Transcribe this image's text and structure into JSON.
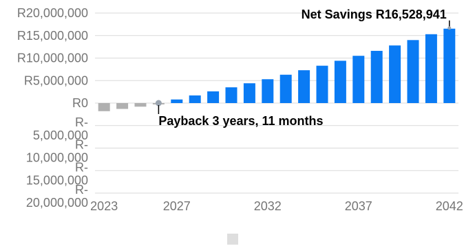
{
  "chart_data": {
    "type": "bar",
    "x": [
      2023,
      2024,
      2025,
      2026,
      2027,
      2028,
      2029,
      2030,
      2031,
      2032,
      2033,
      2034,
      2035,
      2036,
      2037,
      2038,
      2039,
      2040,
      2041,
      2042
    ],
    "values": [
      -1800000,
      -1300000,
      -800000,
      -300000,
      800000,
      1700000,
      2600000,
      3500000,
      4400000,
      5300000,
      6300000,
      7300000,
      8300000,
      9400000,
      10500000,
      11600000,
      12800000,
      14000000,
      15300000,
      16528941
    ],
    "ylim": [
      -20000000,
      20000000
    ],
    "y_ticks": [
      {
        "value": 20000000,
        "label": "R20,000,000"
      },
      {
        "value": 15000000,
        "label": "R15,000,000"
      },
      {
        "value": 10000000,
        "label": "R10,000,000"
      },
      {
        "value": 5000000,
        "label": "R5,000,000"
      },
      {
        "value": 0,
        "label": "R0"
      },
      {
        "value": -5000000,
        "label": "R-\n5,000,000"
      },
      {
        "value": -10000000,
        "label": "R-\n10,000,000"
      },
      {
        "value": -15000000,
        "label": "R-\n15,000,000"
      },
      {
        "value": -20000000,
        "label": "R-\n20,000,000"
      }
    ],
    "x_ticks": [
      "2023",
      "2027",
      "2032",
      "2037",
      "2042"
    ],
    "annotations": [
      {
        "label": "Net Savings R16,528,941",
        "x": 2042,
        "y": 16528941
      },
      {
        "label": "Payback 3 years, 11 months",
        "x": 2026,
        "y": 0
      }
    ],
    "grid": true,
    "legend": "bottom",
    "colors": {
      "positive": "#0a7bf4",
      "negative": "#b0b0b0",
      "grid": "#d9d9d9",
      "marker": "#9aa4b0",
      "tick_text": "#757575"
    }
  }
}
